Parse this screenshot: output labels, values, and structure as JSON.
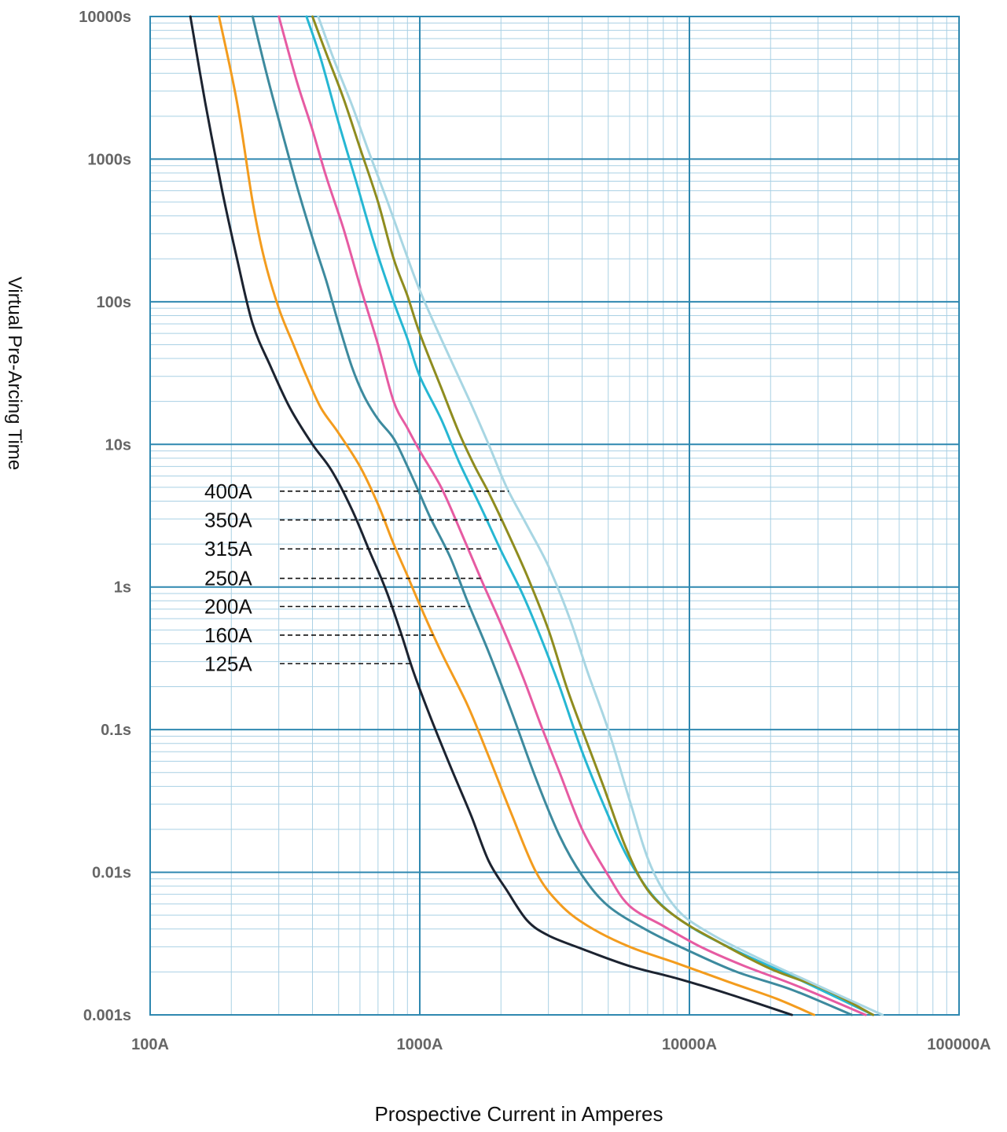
{
  "chart_data": {
    "type": "line",
    "xlabel": "Prospective Current in Amperes",
    "ylabel": "Virtual Pre-Arcing Time",
    "x_scale": "log",
    "y_scale": "log",
    "xlim": [
      100,
      100000
    ],
    "ylim": [
      0.001,
      10000
    ],
    "x_ticks": [
      {
        "value": 100,
        "label": "100A"
      },
      {
        "value": 1000,
        "label": "1000A"
      },
      {
        "value": 10000,
        "label": "10000A"
      },
      {
        "value": 100000,
        "label": "100000A"
      }
    ],
    "y_ticks": [
      {
        "value": 10000,
        "label": "10000s"
      },
      {
        "value": 1000,
        "label": "1000s"
      },
      {
        "value": 100,
        "label": "100s"
      },
      {
        "value": 10,
        "label": "10s"
      },
      {
        "value": 1,
        "label": "1s"
      },
      {
        "value": 0.1,
        "label": "0.1s"
      },
      {
        "value": 0.01,
        "label": "0.01s"
      },
      {
        "value": 0.001,
        "label": "0.001s"
      }
    ],
    "grid": true,
    "series": [
      {
        "name": "125A",
        "color": "#1c2330",
        "label_y": 0.29,
        "points": [
          [
            141,
            10000
          ],
          [
            160,
            2500
          ],
          [
            185,
            600
          ],
          [
            210,
            200
          ],
          [
            240,
            70
          ],
          [
            280,
            35
          ],
          [
            330,
            18
          ],
          [
            400,
            10
          ],
          [
            470,
            6.6
          ],
          [
            560,
            3.5
          ],
          [
            650,
            1.8
          ],
          [
            750,
            0.95
          ],
          [
            850,
            0.48
          ],
          [
            950,
            0.25
          ],
          [
            1100,
            0.12
          ],
          [
            1300,
            0.055
          ],
          [
            1550,
            0.025
          ],
          [
            1800,
            0.012
          ],
          [
            2100,
            0.0075
          ],
          [
            2500,
            0.0046
          ],
          [
            3000,
            0.0036
          ],
          [
            4000,
            0.0029
          ],
          [
            6000,
            0.0022
          ],
          [
            9000,
            0.0018
          ],
          [
            14000,
            0.0014
          ],
          [
            24000,
            0.001
          ]
        ]
      },
      {
        "name": "160A",
        "color": "#f39c1e",
        "label_y": 0.46,
        "points": [
          [
            180,
            10000
          ],
          [
            210,
            2500
          ],
          [
            240,
            500
          ],
          [
            265,
            200
          ],
          [
            300,
            90
          ],
          [
            340,
            50
          ],
          [
            380,
            30
          ],
          [
            430,
            18
          ],
          [
            500,
            12
          ],
          [
            600,
            7
          ],
          [
            700,
            3.8
          ],
          [
            800,
            2
          ],
          [
            900,
            1.2
          ],
          [
            1000,
            0.75
          ],
          [
            1200,
            0.35
          ],
          [
            1500,
            0.15
          ],
          [
            1800,
            0.065
          ],
          [
            2200,
            0.025
          ],
          [
            2700,
            0.01
          ],
          [
            3300,
            0.006
          ],
          [
            4200,
            0.0042
          ],
          [
            6000,
            0.003
          ],
          [
            9000,
            0.0023
          ],
          [
            14000,
            0.0017
          ],
          [
            21000,
            0.0013
          ],
          [
            29000,
            0.001
          ]
        ]
      },
      {
        "name": "200A",
        "color": "#3d8a9e",
        "label_y": 0.73,
        "points": [
          [
            240,
            10000
          ],
          [
            270,
            4000
          ],
          [
            310,
            1500
          ],
          [
            350,
            650
          ],
          [
            400,
            280
          ],
          [
            450,
            140
          ],
          [
            500,
            70
          ],
          [
            560,
            35
          ],
          [
            620,
            22
          ],
          [
            700,
            15
          ],
          [
            800,
            11
          ],
          [
            900,
            7
          ],
          [
            1000,
            4.5
          ],
          [
            1100,
            3
          ],
          [
            1300,
            1.6
          ],
          [
            1500,
            0.8
          ],
          [
            1800,
            0.35
          ],
          [
            2200,
            0.13
          ],
          [
            2700,
            0.045
          ],
          [
            3300,
            0.018
          ],
          [
            4000,
            0.0095
          ],
          [
            5000,
            0.0058
          ],
          [
            7000,
            0.0039
          ],
          [
            10000,
            0.0028
          ],
          [
            15000,
            0.002
          ],
          [
            24000,
            0.0015
          ],
          [
            40000,
            0.001
          ]
        ]
      },
      {
        "name": "250A",
        "color": "#e65ba2",
        "label_y": 1.15,
        "points": [
          [
            300,
            10000
          ],
          [
            350,
            3500
          ],
          [
            400,
            1600
          ],
          [
            450,
            750
          ],
          [
            520,
            330
          ],
          [
            600,
            130
          ],
          [
            700,
            50
          ],
          [
            800,
            20
          ],
          [
            900,
            13
          ],
          [
            1000,
            9
          ],
          [
            1200,
            5
          ],
          [
            1400,
            2.6
          ],
          [
            1700,
            1.1
          ],
          [
            2000,
            0.55
          ],
          [
            2400,
            0.24
          ],
          [
            2800,
            0.11
          ],
          [
            3300,
            0.05
          ],
          [
            4000,
            0.02
          ],
          [
            5000,
            0.0095
          ],
          [
            6000,
            0.0058
          ],
          [
            8000,
            0.0042
          ],
          [
            11000,
            0.003
          ],
          [
            16000,
            0.0022
          ],
          [
            25000,
            0.0016
          ],
          [
            45000,
            0.001
          ]
        ]
      },
      {
        "name": "315A",
        "color": "#26b7d3",
        "label_y": 1.85,
        "points": [
          [
            380,
            10000
          ],
          [
            430,
            5000
          ],
          [
            500,
            1800
          ],
          [
            580,
            700
          ],
          [
            680,
            250
          ],
          [
            800,
            100
          ],
          [
            900,
            55
          ],
          [
            1000,
            30
          ],
          [
            1200,
            15
          ],
          [
            1400,
            7.5
          ],
          [
            1700,
            3.5
          ],
          [
            2000,
            1.8
          ],
          [
            2400,
            0.9
          ],
          [
            2800,
            0.45
          ],
          [
            3300,
            0.2
          ],
          [
            4000,
            0.07
          ],
          [
            5000,
            0.025
          ],
          [
            6000,
            0.012
          ],
          [
            7500,
            0.0065
          ],
          [
            10000,
            0.0042
          ],
          [
            15000,
            0.0028
          ],
          [
            25000,
            0.0018
          ],
          [
            48000,
            0.001
          ]
        ]
      },
      {
        "name": "350A",
        "color": "#8f8c1f",
        "label_y": 2.95,
        "points": [
          [
            400,
            10000
          ],
          [
            450,
            5500
          ],
          [
            520,
            2700
          ],
          [
            600,
            1200
          ],
          [
            700,
            500
          ],
          [
            800,
            200
          ],
          [
            900,
            110
          ],
          [
            1000,
            60
          ],
          [
            1200,
            25
          ],
          [
            1400,
            12
          ],
          [
            1600,
            7
          ],
          [
            1800,
            4.6
          ],
          [
            2100,
            2.5
          ],
          [
            2500,
            1.2
          ],
          [
            3000,
            0.5
          ],
          [
            3500,
            0.2
          ],
          [
            4000,
            0.1
          ],
          [
            4800,
            0.04
          ],
          [
            5800,
            0.015
          ],
          [
            7000,
            0.0075
          ],
          [
            9000,
            0.0048
          ],
          [
            13000,
            0.0032
          ],
          [
            20000,
            0.0021
          ],
          [
            32000,
            0.0015
          ],
          [
            48000,
            0.001
          ]
        ]
      },
      {
        "name": "400A",
        "color": "#a8d6e3",
        "label_y": 4.7,
        "points": [
          [
            420,
            10000
          ],
          [
            480,
            5000
          ],
          [
            560,
            2400
          ],
          [
            650,
            1100
          ],
          [
            760,
            500
          ],
          [
            880,
            230
          ],
          [
            1000,
            120
          ],
          [
            1200,
            55
          ],
          [
            1500,
            22
          ],
          [
            1800,
            10
          ],
          [
            2100,
            5
          ],
          [
            2500,
            2.7
          ],
          [
            3000,
            1.4
          ],
          [
            3600,
            0.6
          ],
          [
            4200,
            0.25
          ],
          [
            5000,
            0.1
          ],
          [
            6000,
            0.032
          ],
          [
            7200,
            0.011
          ],
          [
            9000,
            0.0055
          ],
          [
            12000,
            0.0037
          ],
          [
            18000,
            0.0025
          ],
          [
            28000,
            0.0017
          ],
          [
            52000,
            0.001
          ]
        ]
      }
    ]
  }
}
